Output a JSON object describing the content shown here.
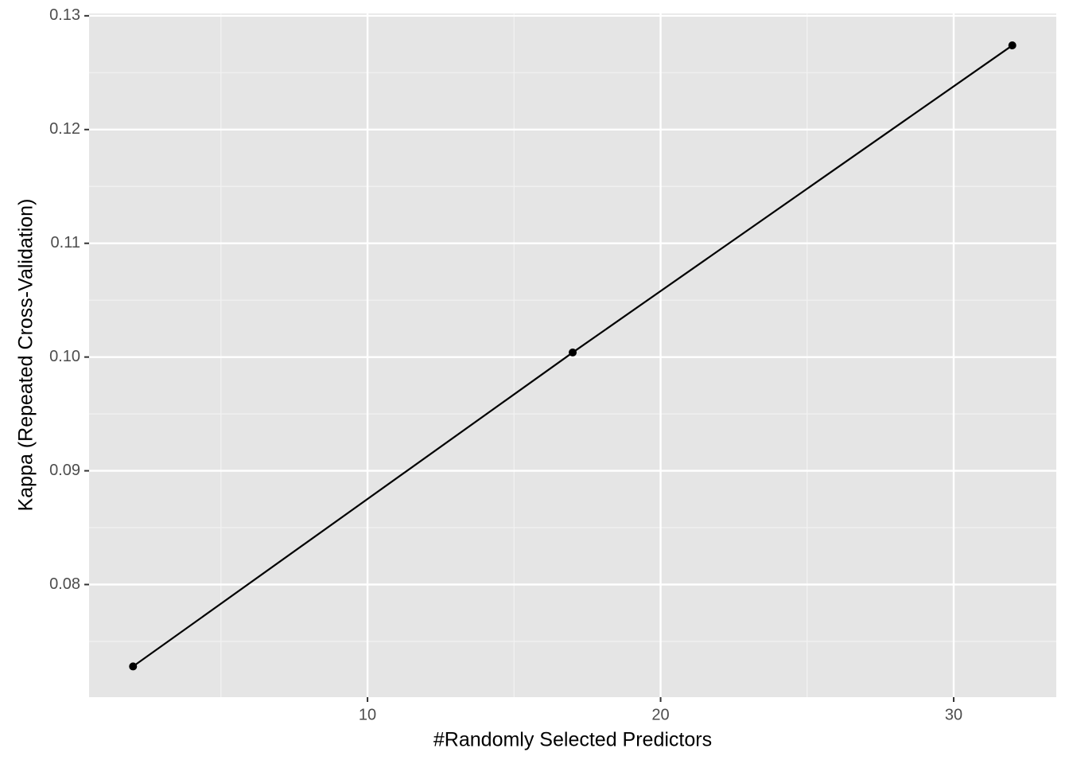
{
  "chart_data": {
    "type": "line",
    "x_label": "#Randomly Selected Predictors",
    "y_label": "Kappa (Repeated Cross-Validation)",
    "x": [
      2,
      17,
      32
    ],
    "series": [
      {
        "color": "#000000",
        "values": [
          0.0728,
          0.1004,
          0.1274
        ]
      }
    ],
    "xlim": [
      0.5,
      33.5
    ],
    "ylim": [
      0.0701,
      0.1302
    ],
    "xticks": [
      10,
      20,
      30
    ],
    "yticks": [
      0.08,
      0.09,
      {
        "value": 0.1,
        "label": "0.10"
      },
      0.11,
      0.12,
      0.13
    ],
    "x_minor_breaks": [
      5,
      15,
      25
    ],
    "y_minor_breaks": [
      0.075,
      0.085,
      0.095,
      0.105,
      0.115,
      0.125
    ],
    "grid": true
  }
}
